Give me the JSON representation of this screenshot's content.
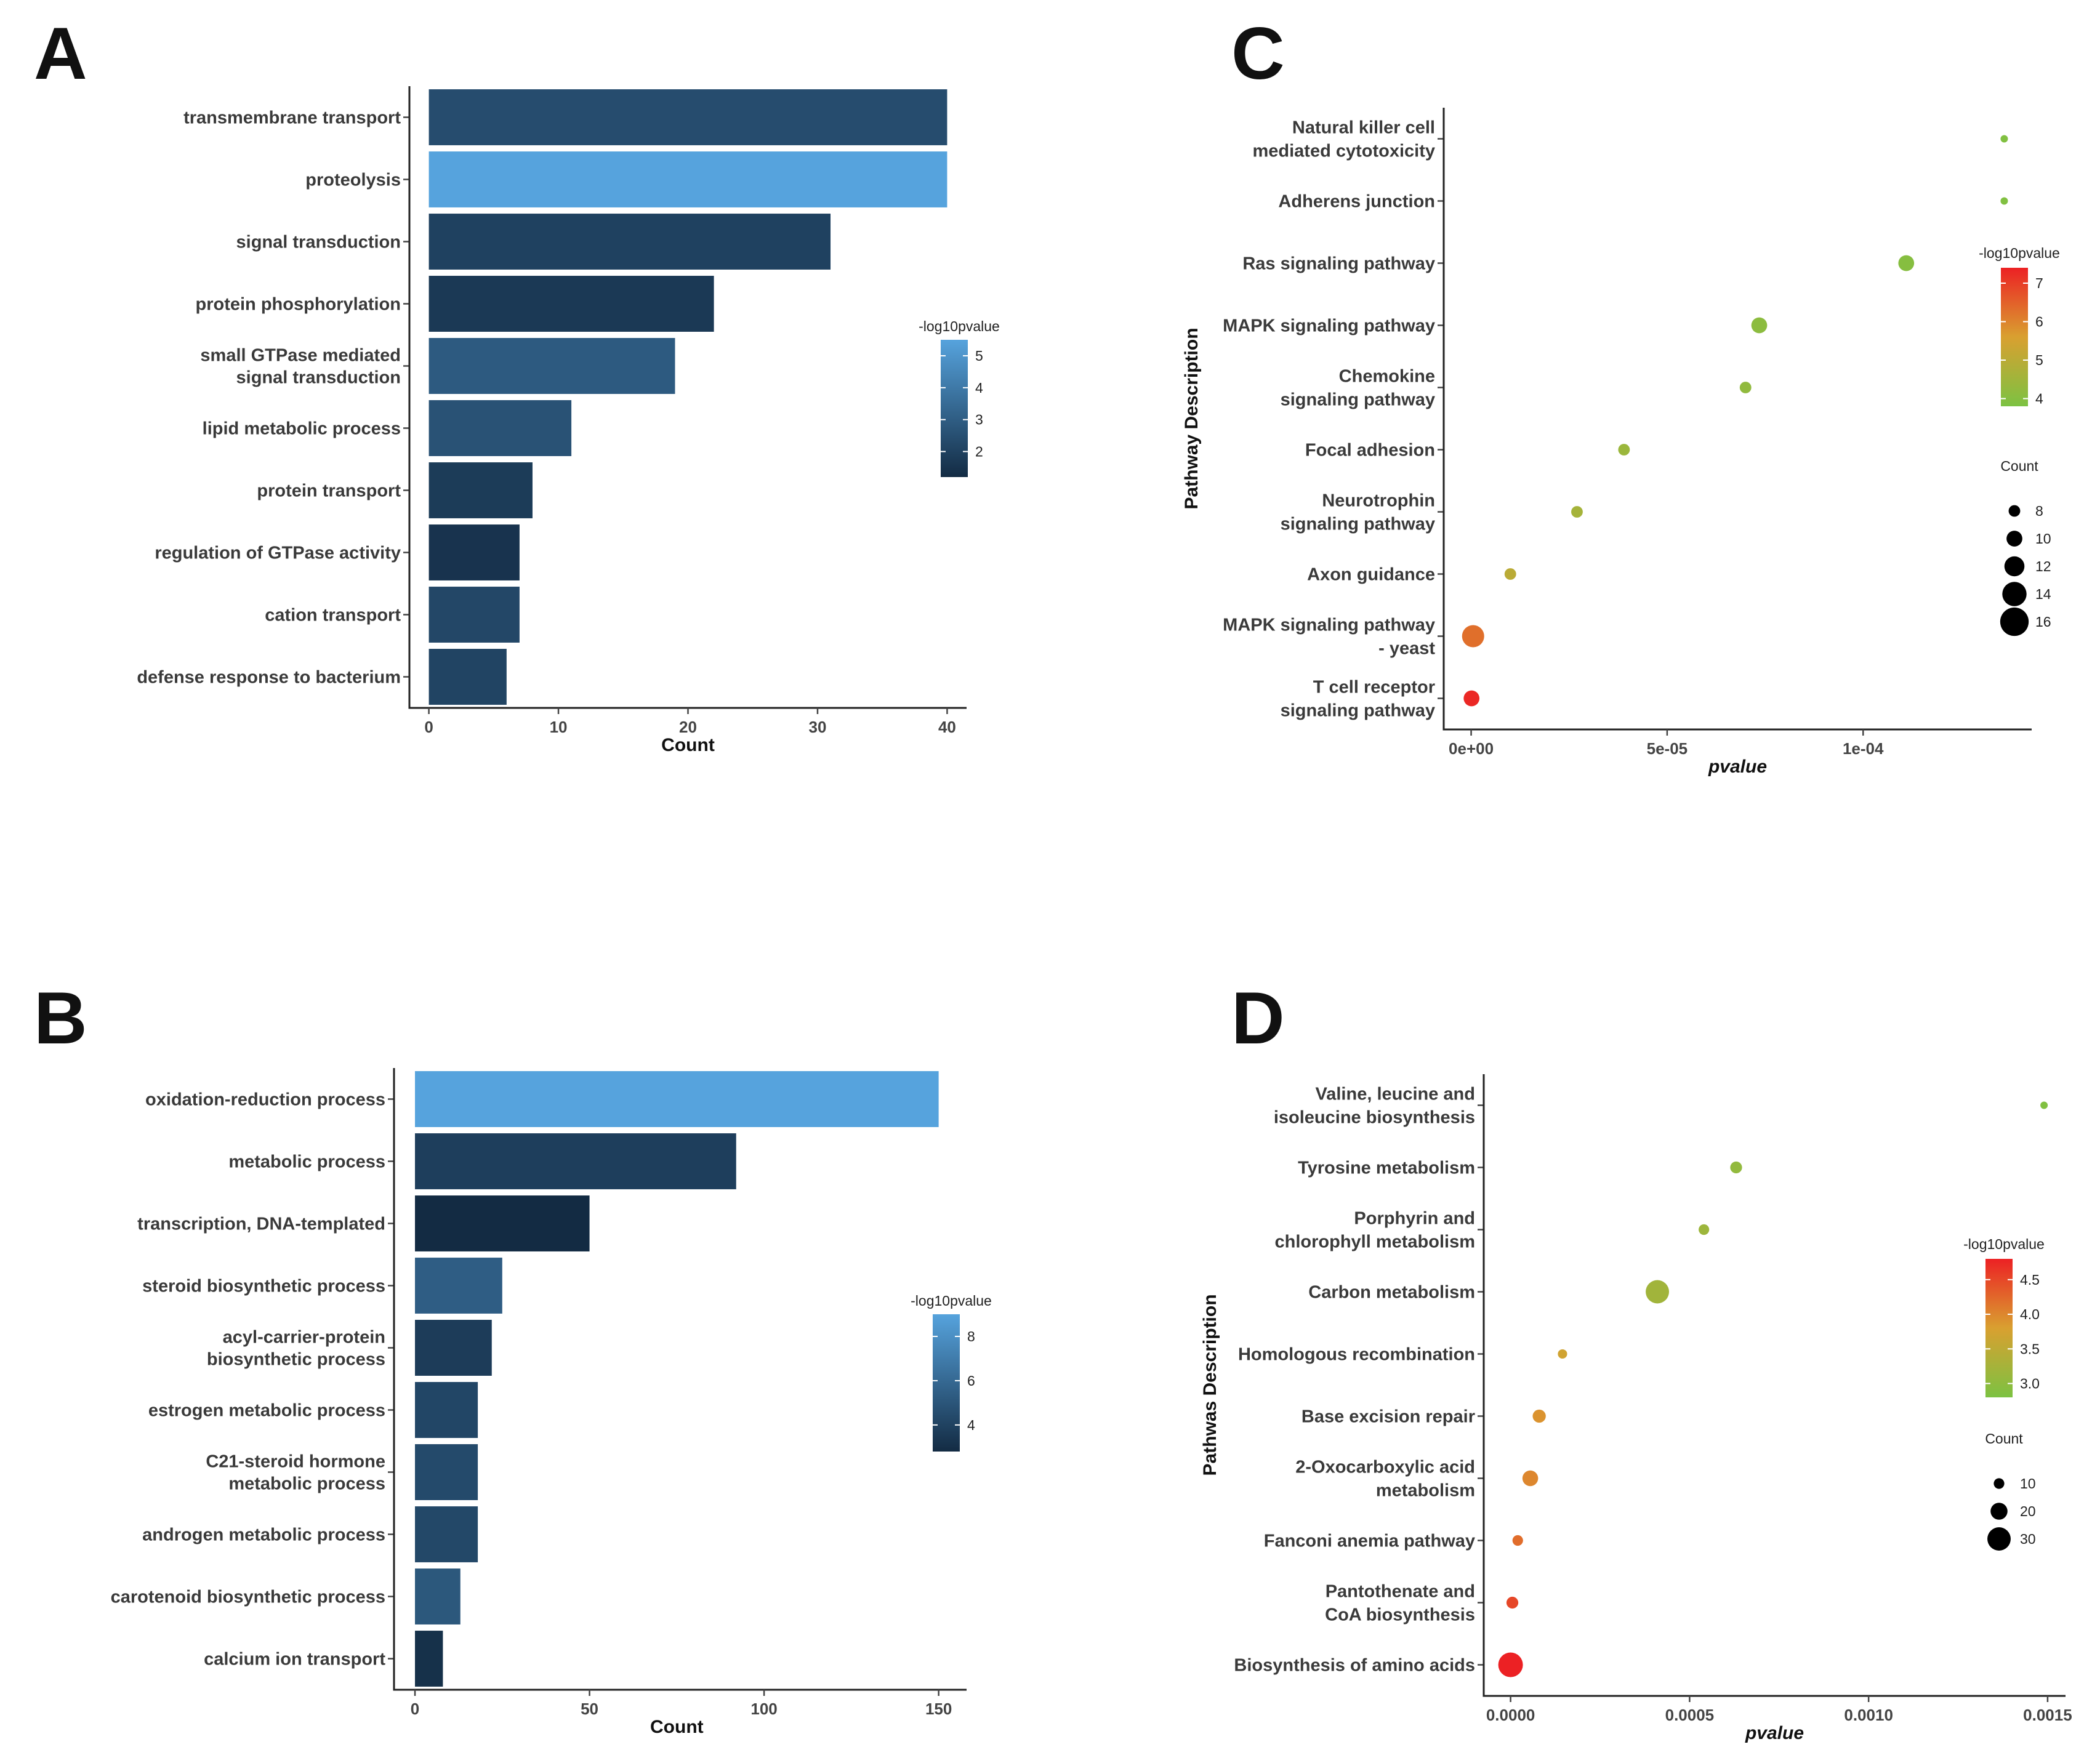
{
  "panel_labels": [
    "A",
    "B",
    "C",
    "D"
  ],
  "chart_data": [
    {
      "panel": "A",
      "type": "bar",
      "orientation": "horizontal",
      "categories": [
        "transmembrane transport",
        "proteolysis",
        "signal transduction",
        "protein phosphorylation",
        "small GTPase mediated\nsignal transduction",
        "lipid metabolic process",
        "protein transport",
        "regulation of GTPase activity",
        "cation transport",
        "defense response to bacterium"
      ],
      "values": [
        40,
        40,
        31,
        22,
        19,
        11,
        8,
        7,
        7,
        6
      ],
      "color_values": [
        2.4,
        5.5,
        2.0,
        1.7,
        2.9,
        2.6,
        1.8,
        1.5,
        2.2,
        2.1
      ],
      "xlabel": "Count",
      "xlim": [
        -1.5,
        41.5
      ],
      "xticks": [
        0,
        10,
        20,
        30,
        40
      ],
      "legend": {
        "title": "-log10pvalue",
        "ticks": [
          2,
          3,
          4,
          5
        ],
        "range": [
          1.2,
          5.5
        ],
        "low_color": "#132b43",
        "high_color": "#56a3dd"
      }
    },
    {
      "panel": "B",
      "type": "bar",
      "orientation": "horizontal",
      "categories": [
        "oxidation-reduction process",
        "metabolic process",
        "transcription, DNA-templated",
        "steroid biosynthetic process",
        "acyl-carrier-protein\nbiosynthetic process",
        "estrogen metabolic process",
        "C21-steroid hormone\nmetabolic process",
        "androgen metabolic process",
        "carotenoid biosynthetic process",
        "calcium ion transport"
      ],
      "values": [
        150,
        92,
        50,
        25,
        22,
        18,
        18,
        18,
        13,
        8
      ],
      "color_values": [
        9.0,
        3.8,
        2.6,
        5.4,
        3.7,
        4.2,
        4.4,
        4.3,
        5.1,
        3.1
      ],
      "xlabel": "Count",
      "xlim": [
        -6,
        158
      ],
      "xticks": [
        0,
        50,
        100,
        150
      ],
      "legend": {
        "title": "-log10pvalue",
        "ticks": [
          4,
          6,
          8
        ],
        "range": [
          2.8,
          9.0
        ],
        "low_color": "#132b43",
        "high_color": "#56a3dd"
      }
    },
    {
      "panel": "C",
      "type": "scatter",
      "ylabel": "Pathway Description",
      "xlabel": "pvalue",
      "categories": [
        "Natural killer cell\nmediated cytotoxicity",
        "Adherens junction",
        "Ras signaling pathway",
        "MAPK signaling pathway",
        "Chemokine\nsignaling pathway",
        "Focal adhesion",
        "Neurotrophin\nsignaling pathway",
        "Axon guidance",
        "MAPK signaling pathway\n- yeast",
        "T cell receptor\nsignaling pathway"
      ],
      "x": [
        0.000136,
        0.000136,
        0.000111,
        7.35e-05,
        7e-05,
        3.9e-05,
        2.7e-05,
        1e-05,
        5e-07,
        1e-07
      ],
      "counts": [
        6,
        6,
        10,
        10,
        8,
        8,
        8,
        8,
        13,
        10
      ],
      "color_values": [
        3.9,
        3.9,
        4.0,
        4.1,
        4.2,
        4.4,
        4.6,
        5.0,
        6.3,
        7.3
      ],
      "xlim": [
        -7e-06,
        0.000143
      ],
      "xticks": [
        0,
        5e-05,
        0.0001
      ],
      "xtick_labels": [
        "0e+00",
        "5e-05",
        "1e-04"
      ],
      "color_legend": {
        "title": "-log10pvalue",
        "ticks": [
          4,
          5,
          6,
          7
        ],
        "range": [
          3.8,
          7.4
        ],
        "low_color": "#7cc242",
        "high_color": "#ec2124"
      },
      "size_legend": {
        "title": "Count",
        "values": [
          8,
          10,
          12,
          14,
          16
        ]
      }
    },
    {
      "panel": "D",
      "type": "scatter",
      "ylabel": "Pathwas  Description",
      "xlabel": "pvalue",
      "categories": [
        "Valine, leucine and\nisoleucine biosynthesis",
        "Tyrosine metabolism",
        "Porphyrin and\nchlorophyll metabolism",
        "Carbon metabolism",
        "Homologous recombination",
        "Base excision repair",
        "2-Oxocarboxylic acid\nmetabolism",
        "Fanconi anemia pathway",
        "Pantothenate and\nCoA biosynthesis",
        "Biosynthesis of amino acids"
      ],
      "x": [
        0.00149,
        0.00063,
        0.00054,
        0.00041,
        0.000145,
        8e-05,
        5.5e-05,
        2e-05,
        5e-06,
        0.0
      ],
      "counts": [
        5,
        12,
        10,
        30,
        8,
        14,
        18,
        10,
        12,
        32
      ],
      "color_values": [
        2.85,
        3.05,
        3.15,
        3.2,
        3.7,
        3.9,
        4.0,
        4.2,
        4.5,
        4.8
      ],
      "xlim": [
        -7.5e-05,
        0.00155
      ],
      "xticks": [
        0,
        0.0005,
        0.001,
        0.0015
      ],
      "xtick_labels": [
        "0.0000",
        "0.0005",
        "0.0010",
        "0.0015"
      ],
      "color_legend": {
        "title": "-log10pvalue",
        "ticks": [
          3.0,
          3.5,
          4.0,
          4.5
        ],
        "tick_labels": [
          "3.0",
          "3.5",
          "4.0",
          "4.5"
        ],
        "range": [
          2.8,
          4.8
        ],
        "low_color": "#7cc242",
        "high_color": "#ec2124"
      },
      "size_legend": {
        "title": "Count",
        "values": [
          10,
          20,
          30
        ]
      }
    }
  ]
}
